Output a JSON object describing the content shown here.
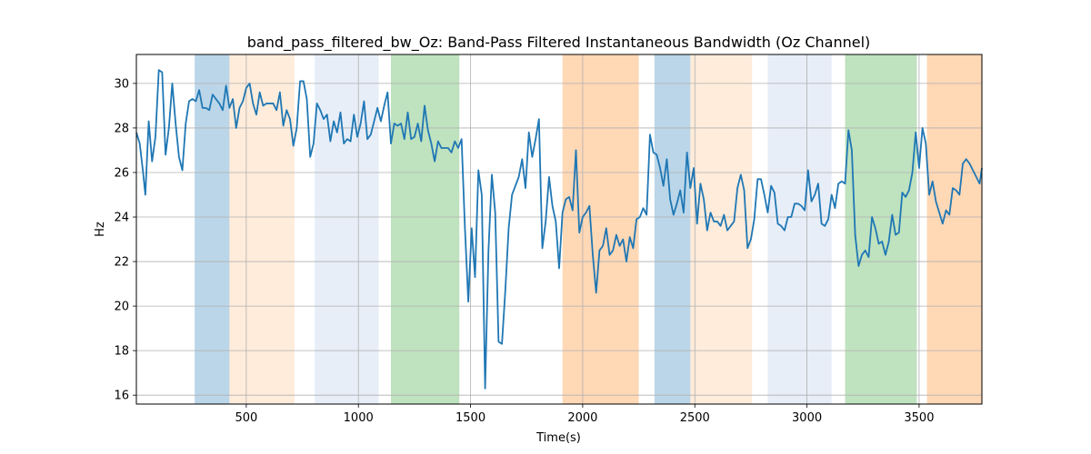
{
  "chart_data": {
    "type": "line",
    "title": "band_pass_filtered_bw_Oz: Band-Pass Filtered Instantaneous Bandwidth (Oz Channel)",
    "xlabel": "Time(s)",
    "ylabel": "Hz",
    "xlim": [
      10,
      3780
    ],
    "ylim": [
      15.6,
      31.3
    ],
    "x_ticks": [
      500,
      1000,
      1500,
      2000,
      2500,
      3000,
      3500
    ],
    "y_ticks": [
      16,
      18,
      20,
      22,
      24,
      26,
      28,
      30
    ],
    "grid": true,
    "line_color": "#1f77b4",
    "bands": [
      {
        "start": 270,
        "end": 425,
        "color": "#1f77b4",
        "opacity": 0.3
      },
      {
        "start": 425,
        "end": 715,
        "color": "#ff7f0e",
        "opacity": 0.15
      },
      {
        "start": 805,
        "end": 1090,
        "color": "#aec7e8",
        "opacity": 0.3
      },
      {
        "start": 1145,
        "end": 1450,
        "color": "#2ca02c",
        "opacity": 0.3
      },
      {
        "start": 1910,
        "end": 2250,
        "color": "#ff7f0e",
        "opacity": 0.3
      },
      {
        "start": 2320,
        "end": 2480,
        "color": "#1f77b4",
        "opacity": 0.3
      },
      {
        "start": 2480,
        "end": 2755,
        "color": "#ff7f0e",
        "opacity": 0.15
      },
      {
        "start": 2825,
        "end": 3110,
        "color": "#aec7e8",
        "opacity": 0.3
      },
      {
        "start": 3170,
        "end": 3490,
        "color": "#2ca02c",
        "opacity": 0.3
      },
      {
        "start": 3535,
        "end": 3780,
        "color": "#ff7f0e",
        "opacity": 0.3
      }
    ],
    "series": [
      {
        "x": [
          10,
          25,
          40,
          50,
          65,
          80,
          95,
          110,
          125,
          140,
          155,
          170,
          185,
          200,
          215,
          230,
          245,
          260,
          275,
          290,
          305,
          320,
          335,
          350,
          365,
          380,
          395,
          410,
          425,
          440,
          455,
          470,
          485,
          500,
          515,
          530,
          545,
          560,
          575,
          590,
          605,
          620,
          635,
          650,
          665,
          680,
          695,
          710,
          725,
          740,
          755,
          770,
          785,
          800,
          815,
          830,
          845,
          860,
          875,
          890,
          905,
          920,
          935,
          950,
          965,
          980,
          995,
          1010,
          1025,
          1040,
          1055,
          1070,
          1085,
          1100,
          1115,
          1130,
          1145,
          1160,
          1175,
          1190,
          1205,
          1220,
          1235,
          1250,
          1265,
          1280,
          1295,
          1310,
          1325,
          1340,
          1355,
          1370,
          1385,
          1400,
          1415,
          1430,
          1445,
          1460,
          1475,
          1490,
          1505,
          1520,
          1535,
          1550,
          1565,
          1580,
          1595,
          1610,
          1625,
          1640,
          1655,
          1670,
          1685,
          1700,
          1715,
          1730,
          1745,
          1760,
          1775,
          1790,
          1805,
          1820,
          1835,
          1850,
          1865,
          1880,
          1895,
          1910,
          1925,
          1940,
          1955,
          1970,
          1985,
          2000,
          2015,
          2030,
          2045,
          2060,
          2075,
          2090,
          2105,
          2120,
          2135,
          2150,
          2165,
          2180,
          2195,
          2210,
          2225,
          2240,
          2255,
          2270,
          2285,
          2300,
          2315,
          2330,
          2345,
          2360,
          2375,
          2390,
          2405,
          2420,
          2435,
          2450,
          2465,
          2480,
          2495,
          2510,
          2525,
          2540,
          2555,
          2570,
          2585,
          2600,
          2615,
          2630,
          2645,
          2660,
          2675,
          2690,
          2705,
          2720,
          2735,
          2750,
          2765,
          2780,
          2795,
          2810,
          2825,
          2840,
          2855,
          2870,
          2885,
          2900,
          2915,
          2930,
          2945,
          2960,
          2975,
          2990,
          3005,
          3020,
          3035,
          3050,
          3065,
          3080,
          3095,
          3110,
          3125,
          3140,
          3155,
          3170,
          3185,
          3200,
          3215,
          3230,
          3245,
          3260,
          3275,
          3290,
          3305,
          3320,
          3335,
          3350,
          3365,
          3380,
          3395,
          3410,
          3425,
          3440,
          3455,
          3470,
          3485,
          3500,
          3515,
          3530,
          3545,
          3560,
          3575,
          3590,
          3605,
          3620,
          3635,
          3650,
          3665,
          3680,
          3695,
          3710,
          3725,
          3740,
          3755,
          3770,
          3780
        ],
        "y": [
          27.8,
          27.3,
          26.0,
          25.0,
          28.3,
          26.5,
          27.6,
          30.6,
          30.5,
          26.8,
          28.0,
          30.0,
          28.2,
          26.7,
          26.1,
          28.2,
          29.2,
          29.3,
          29.2,
          29.7,
          28.9,
          28.9,
          28.8,
          29.5,
          29.3,
          29.1,
          28.8,
          29.9,
          28.9,
          29.3,
          28.0,
          28.9,
          29.2,
          29.8,
          30.0,
          29.1,
          28.6,
          29.6,
          29.0,
          29.1,
          29.1,
          29.1,
          28.8,
          29.6,
          28.1,
          28.8,
          28.4,
          27.2,
          28.0,
          30.1,
          30.1,
          29.3,
          26.7,
          27.3,
          29.1,
          28.8,
          28.4,
          28.6,
          27.4,
          28.3,
          27.8,
          28.7,
          27.3,
          27.5,
          27.4,
          28.6,
          27.6,
          28.2,
          29.2,
          27.5,
          27.7,
          28.3,
          28.9,
          28.3,
          29.0,
          29.6,
          27.3,
          28.2,
          28.1,
          28.2,
          27.5,
          28.7,
          27.5,
          27.6,
          28.2,
          27.4,
          29.0,
          27.9,
          27.3,
          26.5,
          27.4,
          27.1,
          27.1,
          27.1,
          26.9,
          27.4,
          27.1,
          27.5,
          23.5,
          20.2,
          23.5,
          21.3,
          26.1,
          25.0,
          16.3,
          22.5,
          25.9,
          24.2,
          18.4,
          18.3,
          20.7,
          23.5,
          25.0,
          25.4,
          25.8,
          26.6,
          25.3,
          27.8,
          26.7,
          27.5,
          28.4,
          22.6,
          23.8,
          25.8,
          24.5,
          23.8,
          21.7,
          24.2,
          24.8,
          24.9,
          24.3,
          27.0,
          23.3,
          24.0,
          24.2,
          24.5,
          22.3,
          20.6,
          22.5,
          22.7,
          23.5,
          22.3,
          22.5,
          23.2,
          22.7,
          23.0,
          22.0,
          23.1,
          22.6,
          23.9,
          24.0,
          24.4,
          24.1,
          27.7,
          26.9,
          26.8,
          26.2,
          25.4,
          26.6,
          24.8,
          24.1,
          24.6,
          25.2,
          24.2,
          26.9,
          25.3,
          26.2,
          23.7,
          25.5,
          24.8,
          23.4,
          24.2,
          23.8,
          23.8,
          23.6,
          24.1,
          23.4,
          23.6,
          23.8,
          25.3,
          25.9,
          25.2,
          22.6,
          23.0,
          23.9,
          25.7,
          25.7,
          25.0,
          24.2,
          25.4,
          25.1,
          23.7,
          23.6,
          23.4,
          24.0,
          24.0,
          24.6,
          24.6,
          24.5,
          24.3,
          26.1,
          24.7,
          25.0,
          25.5,
          23.7,
          23.6,
          23.9,
          25.0,
          24.4,
          25.5,
          25.6,
          25.5,
          27.9,
          27.0,
          23.2,
          21.8,
          22.3,
          22.5,
          22.2,
          24.0,
          23.5,
          22.8,
          22.9,
          22.3,
          22.9,
          24.1,
          23.2,
          23.3,
          25.1,
          24.9,
          25.2,
          26.0,
          27.8,
          26.2,
          28.0,
          27.3,
          25.0,
          25.6,
          24.7,
          24.2,
          23.7,
          24.3,
          24.1,
          25.3,
          25.2,
          25.0,
          26.4,
          26.6,
          26.4,
          26.1,
          25.8,
          25.5,
          26.2
        ]
      }
    ]
  }
}
